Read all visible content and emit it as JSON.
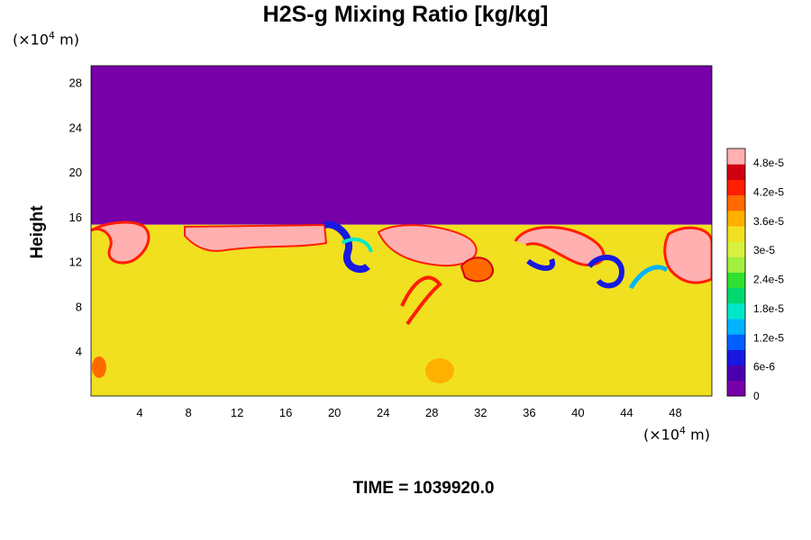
{
  "chart_data": {
    "type": "heatmap",
    "title": "H2S-g Mixing Ratio [kg/kg]",
    "ylabel": "Height",
    "y_unit": {
      "prefix": "(×10",
      "exp": "4",
      "suffix": " m)"
    },
    "x_unit": {
      "prefix": "(×10",
      "exp": "4",
      "suffix": " m)"
    },
    "x_ticks": [
      "4",
      "8",
      "12",
      "16",
      "20",
      "24",
      "28",
      "32",
      "36",
      "40",
      "44",
      "48"
    ],
    "y_ticks": [
      "4",
      "8",
      "12",
      "16",
      "20",
      "24",
      "28"
    ],
    "x_tick_values": [
      4,
      8,
      12,
      16,
      20,
      24,
      28,
      32,
      36,
      40,
      44,
      48
    ],
    "y_tick_values": [
      4,
      8,
      12,
      16,
      20,
      24,
      28
    ],
    "xlim": [
      0,
      51
    ],
    "ylim": [
      0,
      29.5
    ],
    "colorbar": {
      "tick_labels": [
        "4.8e-5",
        "4.2e-5",
        "3.6e-5",
        "3e-5",
        "2.4e-5",
        "1.8e-5",
        "1.2e-5",
        "6e-6",
        "0"
      ],
      "tick_values": [
        4.8e-05,
        4.2e-05,
        3.6e-05,
        3e-05,
        2.4e-05,
        1.8e-05,
        1.2e-05,
        6e-06,
        0
      ],
      "range": [
        0,
        5.1e-05
      ],
      "colors": [
        "#7800a8",
        "#4a00b0",
        "#1818e0",
        "#0060ff",
        "#00b4ff",
        "#00e8c8",
        "#00d870",
        "#30e030",
        "#a0f040",
        "#d8f040",
        "#f0e020",
        "#ffb000",
        "#ff6a00",
        "#ff1e00",
        "#d00010",
        "#ffb0b0"
      ]
    },
    "field_summary": {
      "upper_layer_value": 0,
      "lower_layer_value": 3.3e-05,
      "interface_height": 15.3,
      "layers": [
        {
          "name": "upper",
          "y_range": [
            15.3,
            29.5
          ],
          "value": 0
        },
        {
          "name": "lower",
          "y_range": [
            0,
            15.3
          ],
          "value": 3.3e-05
        }
      ]
    },
    "footer": "TIME = 1039920.0"
  }
}
